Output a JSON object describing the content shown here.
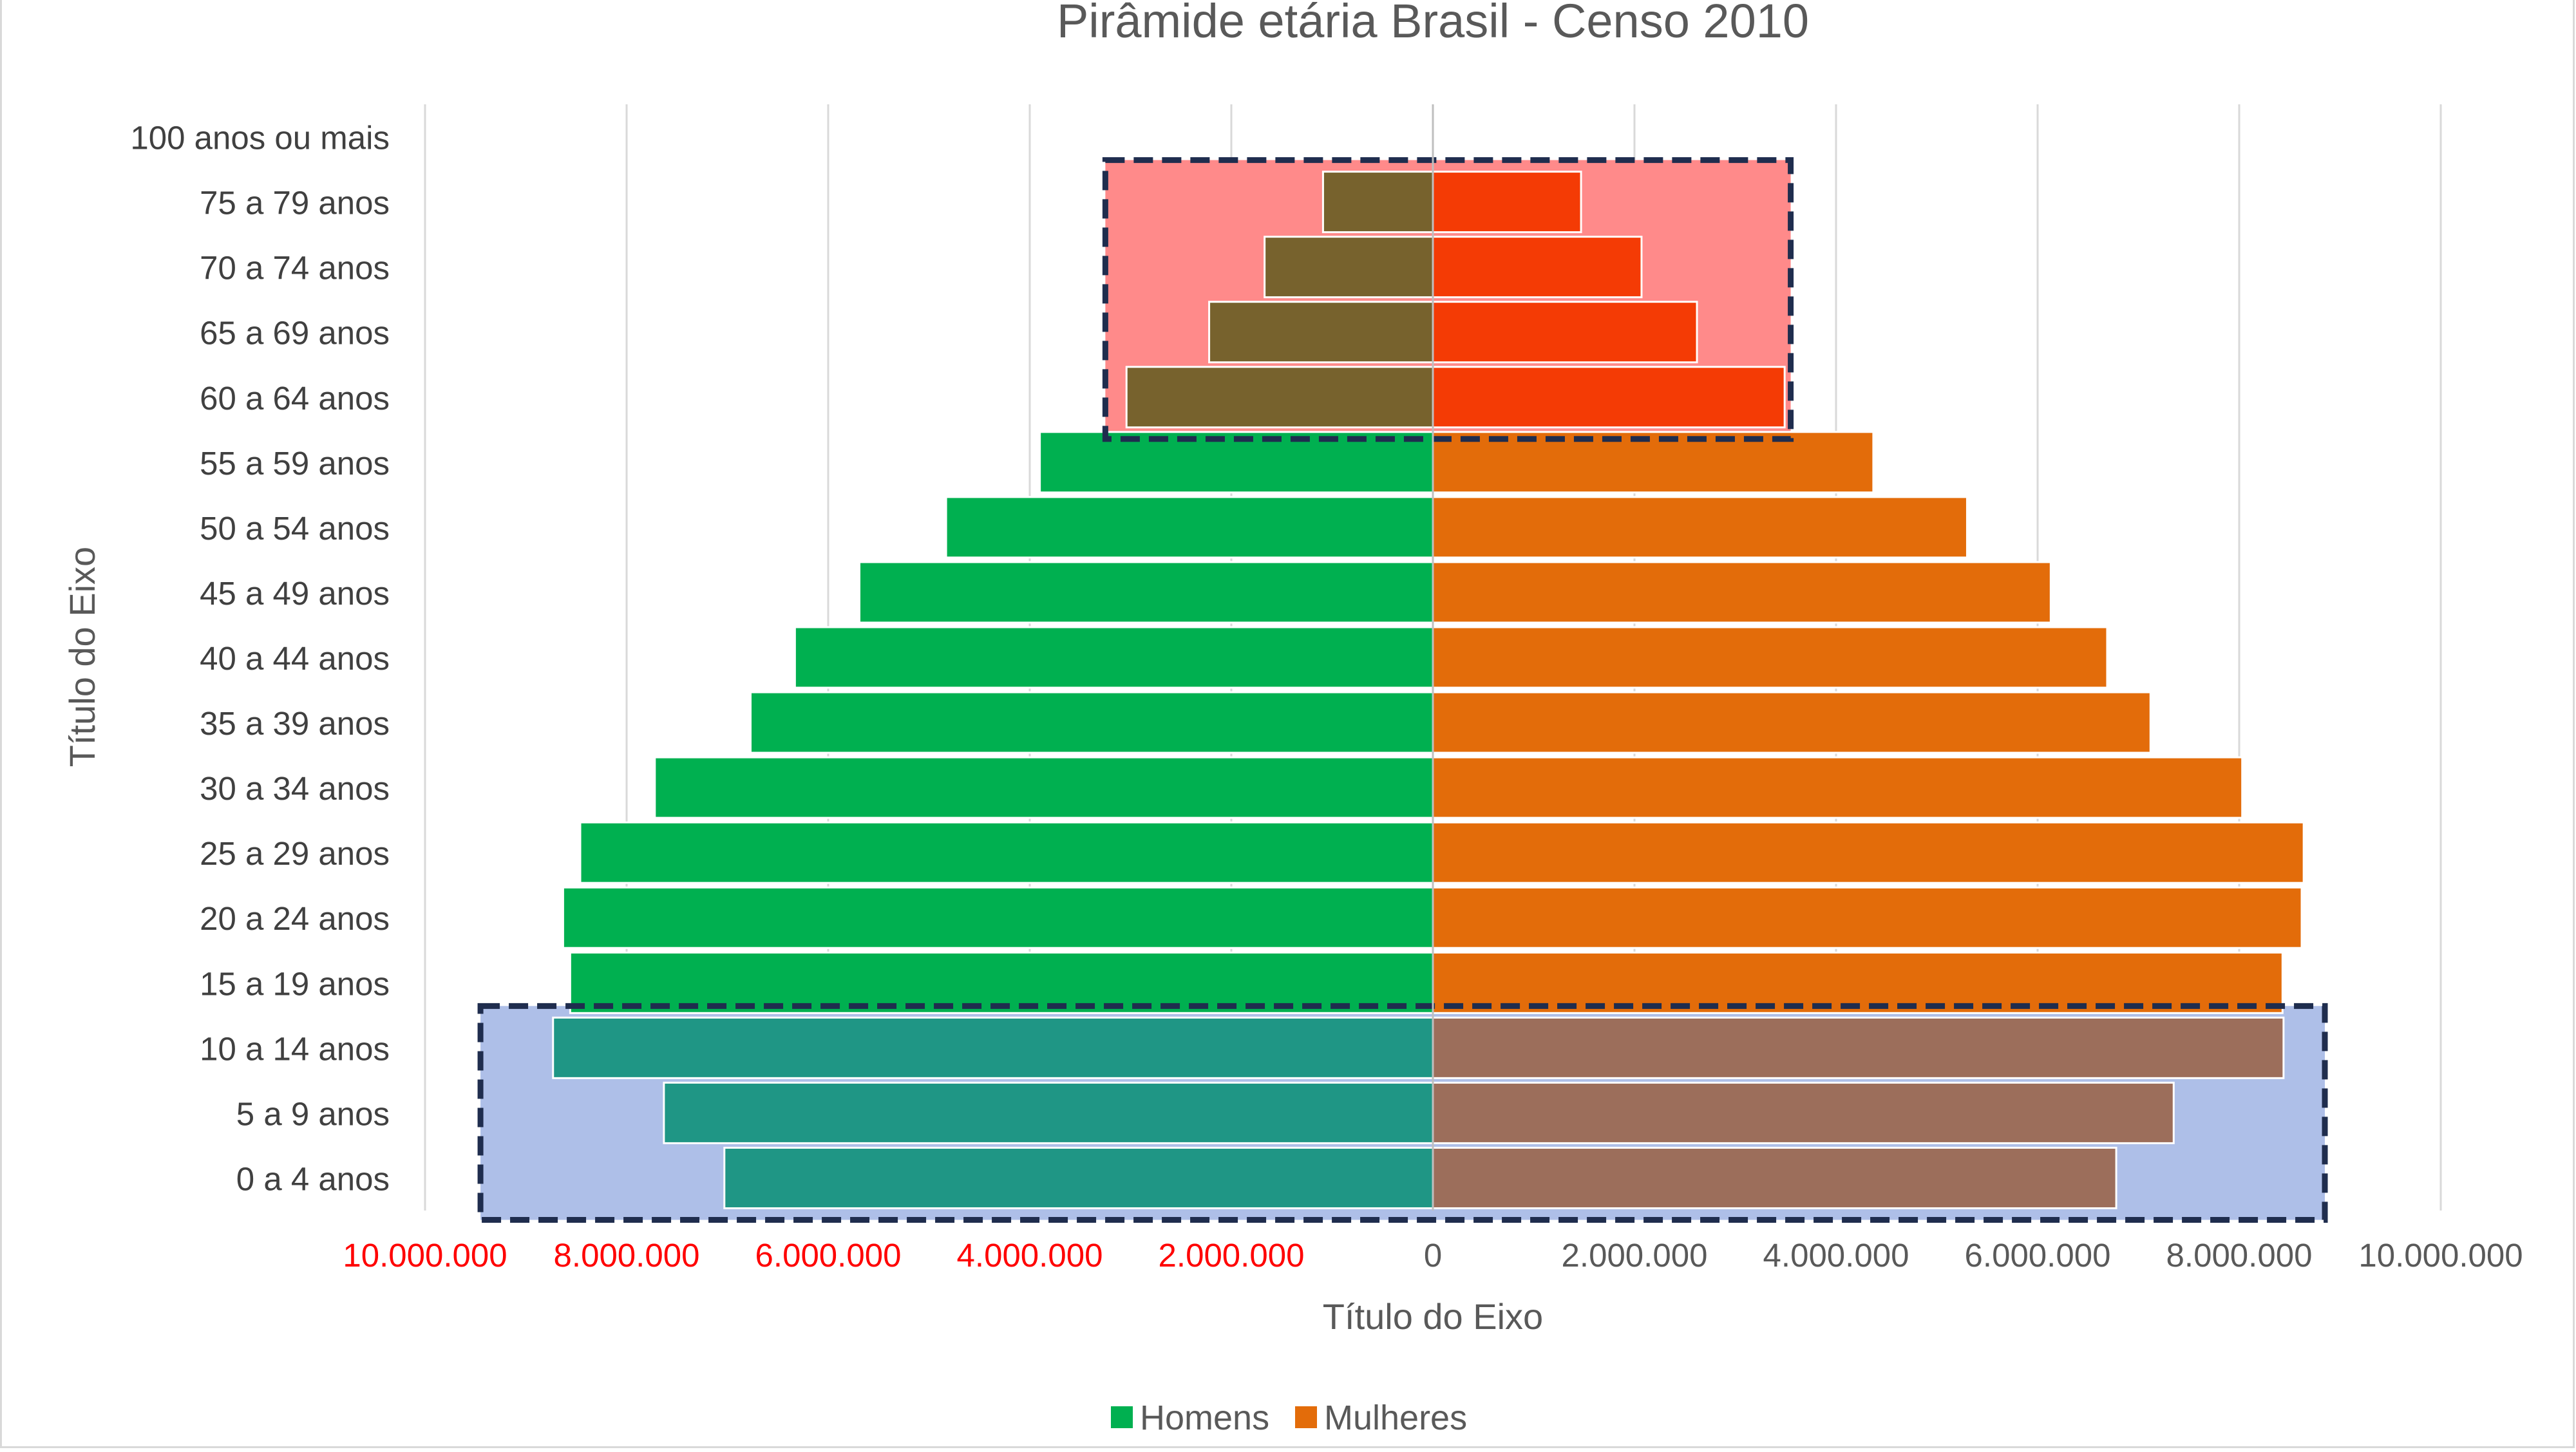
{
  "chart_data": {
    "type": "bar",
    "orientation": "horizontal",
    "title": "Pirâmide etária Brasil - Censo 2010",
    "xlabel": "Título do Eixo",
    "ylabel": "Título do Eixo",
    "xlim": [
      -10000000,
      10000000
    ],
    "x_tick_values": [
      -10000000,
      -8000000,
      -6000000,
      -4000000,
      -2000000,
      0,
      2000000,
      4000000,
      6000000,
      8000000,
      10000000
    ],
    "x_tick_labels": [
      "10.000.000",
      "8.000.000",
      "6.000.000",
      "4.000.000",
      "2.000.000",
      "0",
      "2.000.000",
      "4.000.000",
      "6.000.000",
      "8.000.000",
      "10.000.000"
    ],
    "negative_tick_color": "#ff0000",
    "positive_tick_color": "#595959",
    "grid": "vertical",
    "legend_position": "bottom",
    "categories": [
      "0 a 4 anos",
      "5 a 9 anos",
      "10 a 14 anos",
      "15 a 19 anos",
      "20 a 24 anos",
      "25 a 29 anos",
      "30 a 34 anos",
      "35 a 39 anos",
      "40 a 44 anos",
      "45 a 49 anos",
      "50 a 54 anos",
      "55 a 59 anos",
      "60 a 64 anos",
      "65 a 69 anos",
      "70 a 74 anos",
      "75 a 79 anos",
      "100 anos ou mais"
    ],
    "series": [
      {
        "name": "Homens",
        "color": "#00b050",
        "values": [
          -7030000,
          -7630000,
          -8730000,
          -8560000,
          -8630000,
          -8460000,
          -7720000,
          -6770000,
          -6330000,
          -5690000,
          -4830000,
          -3900000,
          -3040000,
          -2220000,
          -1670000,
          -1090000,
          0
        ],
        "point_colors": [
          "#1f9685",
          "#1f9685",
          "#1f9685",
          null,
          null,
          null,
          null,
          null,
          null,
          null,
          null,
          null,
          "#77622d",
          "#77622d",
          "#77622d",
          "#77622d",
          null
        ]
      },
      {
        "name": "Mulheres",
        "color": "#e36c0a",
        "values": [
          6780000,
          7350000,
          8440000,
          8430000,
          8620000,
          8640000,
          8030000,
          7120000,
          6690000,
          6130000,
          5300000,
          4370000,
          3490000,
          2620000,
          2070000,
          1470000,
          0
        ],
        "point_colors": [
          "#9c6e5b",
          "#9c6e5b",
          "#9c6e5b",
          null,
          null,
          null,
          null,
          null,
          null,
          null,
          null,
          null,
          "#f43b05",
          "#f43b05",
          "#f43b05",
          "#f43b05",
          null
        ]
      }
    ],
    "highlight_boxes": [
      {
        "category_range": [
          "60 a 64 anos",
          "75 a 79 anos"
        ],
        "x_range": [
          -3250000,
          3550000
        ],
        "fill": "#ff8a8a",
        "border": "#1f2d4e",
        "border_style": "dashed"
      },
      {
        "category_range": [
          "0 a 4 anos",
          "10 a 14 anos"
        ],
        "x_range": [
          -9450000,
          8850000
        ],
        "fill": "#aebfe8",
        "border": "#1f2d4e",
        "border_style": "dashed"
      }
    ]
  }
}
